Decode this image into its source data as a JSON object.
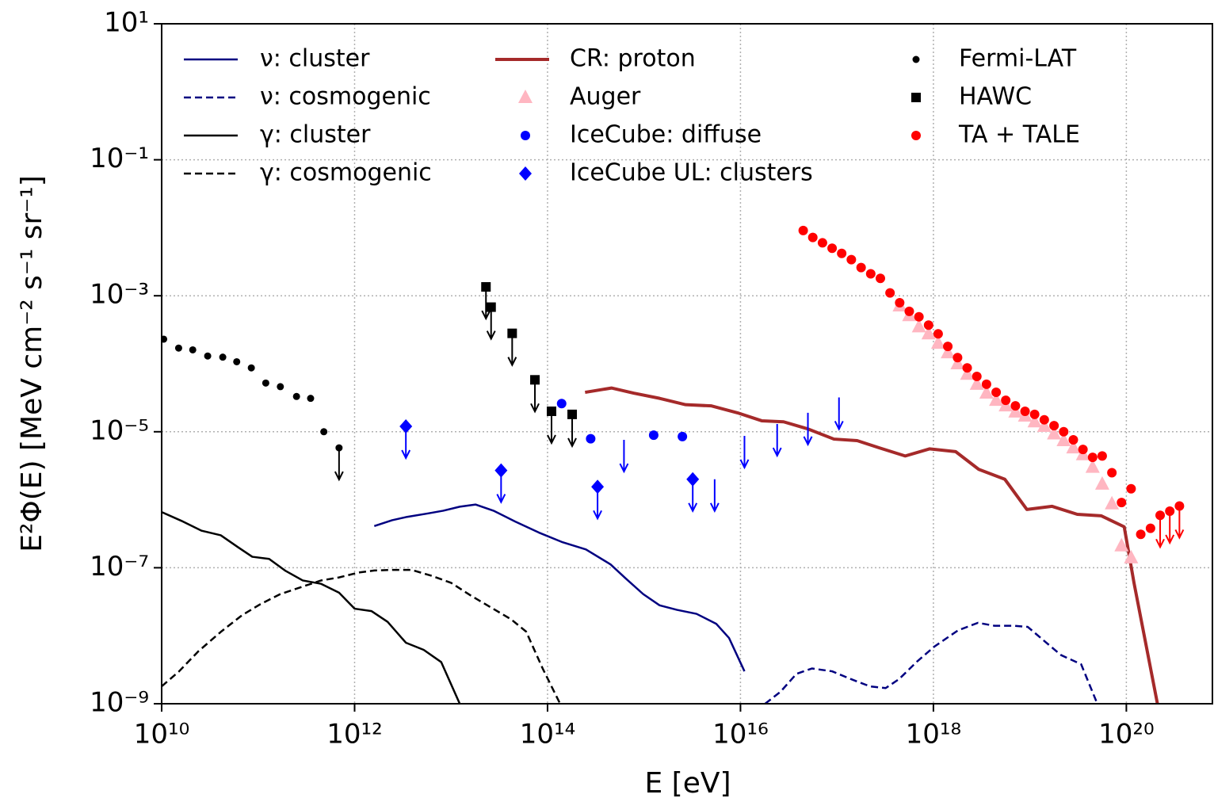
{
  "chart_data": {
    "type": "loglog",
    "x_label": "E [eV]",
    "y_label": "E²Φ(E) [MeV cm⁻² s⁻¹ sr⁻¹]",
    "xlim": [
      10000000000.0,
      7.8e+20
    ],
    "ylim": [
      1e-09,
      10
    ],
    "log_x": true,
    "log_y": true,
    "grid": true,
    "legend": "upper left",
    "xticks": [
      {
        "value": 10000000000.0,
        "label": "10¹⁰"
      },
      {
        "value": 1000000000000.0,
        "label": "10¹²"
      },
      {
        "value": 100000000000000.0,
        "label": "10¹⁴"
      },
      {
        "value": 1e+16,
        "label": "10¹⁶"
      },
      {
        "value": 1e+18,
        "label": "10¹⁸"
      },
      {
        "value": 1e+20,
        "label": "10²⁰"
      }
    ],
    "yticks": [
      {
        "value": 10,
        "label": "10¹"
      },
      {
        "value": 0.1,
        "label": "10⁻¹"
      },
      {
        "value": 0.001,
        "label": "10⁻³"
      },
      {
        "value": 1e-05,
        "label": "10⁻⁵"
      },
      {
        "value": 1e-07,
        "label": "10⁻⁷"
      },
      {
        "value": 1e-09,
        "label": "10⁻⁹"
      }
    ],
    "series": [
      {
        "name": "ν: cluster",
        "color": "#000080",
        "style": "solid",
        "x": [
          1600000000000.0,
          2450000000000.0,
          3500000000000.0,
          5800000000000.0,
          8300000000000.0,
          12300000000000.0,
          18000000000000.0,
          27500000000000.0,
          46000000000000.0,
          81000000000000.0,
          140000000000000.0,
          250000000000000.0,
          450000000000000.0,
          650000000000000.0,
          980000000000000.0,
          1450000000000000.0,
          2200000000000000.0,
          3500000000000000.0,
          5600000000000000.0,
          7600000000000000.0,
          1.1e+16
        ],
        "values": [
          4.1e-07,
          5e-07,
          5.6e-07,
          6.3e-07,
          6.9e-07,
          7.9e-07,
          8.5e-07,
          6.9e-07,
          4.8e-07,
          3.3e-07,
          2.4e-07,
          1.86e-07,
          1.12e-07,
          6.9e-08,
          4.1e-08,
          2.8e-08,
          2.4e-08,
          2.1e-08,
          1.5e-08,
          9.3e-09,
          3e-09
        ]
      },
      {
        "name": "ν: cosmogenic",
        "color": "#000080",
        "style": "dashed",
        "x": [
          1.8e+16,
          2.6e+16,
          3.8e+16,
          5.5e+16,
          8.9e+16,
          1.4e+17,
          2.2e+17,
          3.2e+17,
          4.4e+17,
          6.8e+17,
          1.02e+18,
          1.8e+18,
          2.9e+18,
          4.3e+18,
          6.8e+18,
          9.5e+18,
          1.45e+19,
          2.1e+19,
          3.4e+19,
          5e+19
        ],
        "values": [
          1e-09,
          1.5e-09,
          2.75e-09,
          3.3e-09,
          3e-09,
          2.3e-09,
          1.8e-09,
          1.7e-09,
          2.3e-09,
          4.2e-09,
          6.9e-09,
          1.2e-08,
          1.55e-08,
          1.4e-08,
          1.4e-08,
          1.35e-08,
          8.1e-09,
          5.2e-09,
          3.8e-09,
          1e-09
        ]
      },
      {
        "name": "γ: cluster",
        "color": "#000000",
        "style": "solid",
        "x": [
          10000000000.0,
          16000000000.0,
          26000000000.0,
          41000000000.0,
          62000000000.0,
          87000000000.0,
          130000000000.0,
          190000000000.0,
          290000000000.0,
          450000000000.0,
          690000000000.0,
          1000000000000.0,
          1500000000000.0,
          2200000000000.0,
          3400000000000.0,
          5200000000000.0,
          7900000000000.0,
          12300000000000.0
        ],
        "values": [
          6.6e-07,
          4.9e-07,
          3.5e-07,
          3e-07,
          2e-07,
          1.45e-07,
          1.35e-07,
          9.1e-08,
          6.5e-08,
          5.8e-08,
          4.3e-08,
          2.5e-08,
          2.3e-08,
          1.6e-08,
          7.9e-09,
          6.2e-09,
          4.1e-09,
          1e-09
        ]
      },
      {
        "name": "γ: cosmogenic",
        "color": "#000000",
        "style": "dashed",
        "x": [
          10000000000.0,
          15000000000.0,
          24000000000.0,
          42000000000.0,
          68000000000.0,
          105000000000.0,
          170000000000.0,
          280000000000.0,
          450000000000.0,
          690000000000.0,
          1100000000000.0,
          1600000000000.0,
          2450000000000.0,
          3900000000000.0,
          6300000000000.0,
          10000000000000.0,
          16000000000000.0,
          26000000000000.0,
          42000000000000.0,
          60000000000000.0,
          89000000000000.0,
          135000000000000.0
        ],
        "values": [
          1.8e-09,
          2.95e-09,
          5.9e-09,
          1.17e-08,
          2e-08,
          2.9e-08,
          4.1e-08,
          5.2e-08,
          6.5e-08,
          7.2e-08,
          8.5e-08,
          9.1e-08,
          9.3e-08,
          9.3e-08,
          7.6e-08,
          6e-08,
          3.9e-08,
          2.6e-08,
          1.74e-08,
          1.15e-08,
          3.3e-09,
          1e-09
        ]
      },
      {
        "name": "CR: proton",
        "color": "#a52a2a",
        "style": "thick",
        "x": [
          245000000000000.0,
          460000000000000.0,
          780000000000000.0,
          1450000000000000.0,
          2700000000000000.0,
          5000000000000000.0,
          9300000000000000.0,
          1.66e+16,
          2.8e+16,
          5e+16,
          9.3e+16,
          1.62e+17,
          2.75e+17,
          5.1e+17,
          9.1e+17,
          1.7e+18,
          2.95e+18,
          5.5e+18,
          9.3e+18,
          1.7e+19,
          3.1e+19,
          5.5e+19,
          9.5e+19,
          1.2e+20,
          2.1e+20
        ],
        "values": [
          3.8e-05,
          4.4e-05,
          3.7e-05,
          3.1e-05,
          2.5e-05,
          2.4e-05,
          1.9e-05,
          1.45e-05,
          1.4e-05,
          1.1e-05,
          7.8e-06,
          7.4e-06,
          5.8e-06,
          4.4e-06,
          5.6e-06,
          5.1e-06,
          2.8e-06,
          2e-06,
          7.2e-07,
          8e-07,
          6.1e-07,
          5.8e-07,
          4e-07,
          6e-08,
          1e-09
        ]
      },
      {
        "name": "Auger",
        "color": "#ffb6c1",
        "style": "triangle",
        "x": [
          4.47e+17,
          5.62e+17,
          7.08e+17,
          8.91e+17,
          1.12e+18,
          1.41e+18,
          1.78e+18,
          2.24e+18,
          2.82e+18,
          3.55e+18,
          4.47e+18,
          5.62e+18,
          7.08e+18,
          8.91e+18,
          1.12e+19,
          1.41e+19,
          1.78e+19,
          2.24e+19,
          2.82e+19,
          3.55e+19,
          4.47e+19,
          5.62e+19,
          7.08e+19,
          8.91e+19,
          1.12e+20
        ],
        "values": [
          0.00071,
          0.00051,
          0.00035,
          0.000275,
          0.0002,
          0.000145,
          0.0001,
          7e-05,
          5e-05,
          3.7e-05,
          2.9e-05,
          2.4e-05,
          1.95e-05,
          1.7e-05,
          1.4e-05,
          1.2e-05,
          9.3e-06,
          7.4e-06,
          5.8e-06,
          4.6e-06,
          3e-06,
          1.7e-06,
          8.7e-07,
          2.1e-07,
          1.4e-07
        ]
      },
      {
        "name": "IceCube: diffuse",
        "color": "#0000ff",
        "style": "circle",
        "x": [
          140000000000000.0,
          280000000000000.0,
          620000000000000.0,
          1260000000000000.0,
          2500000000000000.0,
          5400000000000000.0,
          1.1e+16,
          2.4e+16,
          5e+16,
          1.05e+17
        ],
        "values": [
          2.6e-05,
          7.9e-06,
          7.6e-06,
          8.9e-06,
          8.5e-06,
          2e-06,
          8.7e-06,
          1.3e-05,
          1.9e-05,
          3.2e-05
        ],
        "upper_limits": [
          false,
          false,
          true,
          false,
          false,
          true,
          true,
          true,
          true,
          true
        ]
      },
      {
        "name": "IceCube UL: clusters",
        "color": "#0000ff",
        "style": "diamond",
        "x": [
          3400000000000.0,
          33000000000000.0,
          330000000000000.0,
          3200000000000000.0
        ],
        "values": [
          1.2e-05,
          2.7e-06,
          1.55e-06,
          2e-06
        ],
        "upper_limits": [
          true,
          true,
          true,
          true
        ]
      },
      {
        "name": "Fermi-LAT",
        "color": "#000000",
        "style": "circle-small",
        "x": [
          10500000000.0,
          15000000000.0,
          21000000000.0,
          30000000000.0,
          43000000000.0,
          60000000000.0,
          85000000000.0,
          120000000000.0,
          170000000000.0,
          250000000000.0,
          350000000000.0,
          480000000000.0,
          690000000000.0
        ],
        "values": [
          0.00023,
          0.00017,
          0.00016,
          0.00013,
          0.000125,
          0.000107,
          8.7e-05,
          5.2e-05,
          4.6e-05,
          3.3e-05,
          3.1e-05,
          1e-05,
          5.8e-06
        ],
        "upper_limits": [
          false,
          false,
          false,
          false,
          false,
          false,
          false,
          false,
          false,
          false,
          false,
          false,
          true
        ]
      },
      {
        "name": "HAWC",
        "color": "#000000",
        "style": "square",
        "x": [
          23000000000000.0,
          26000000000000.0,
          43000000000000.0,
          74000000000000.0,
          110000000000000.0,
          180000000000000.0
        ],
        "values": [
          0.00135,
          0.00068,
          0.00028,
          5.8e-05,
          2e-05,
          1.8e-05
        ],
        "upper_limits": [
          true,
          true,
          true,
          true,
          true,
          true
        ]
      },
      {
        "name": "TA + TALE",
        "color": "#ff0000",
        "style": "circle",
        "x": [
          4.47e+16,
          5.62e+16,
          7.08e+16,
          8.91e+16,
          1.12e+17,
          1.41e+17,
          1.78e+17,
          2.24e+17,
          2.82e+17,
          3.55e+17,
          4.47e+17,
          5.62e+17,
          7.08e+17,
          8.91e+17,
          1.12e+18,
          1.41e+18,
          1.78e+18,
          2.24e+18,
          2.82e+18,
          3.55e+18,
          4.47e+18,
          5.62e+18,
          7.08e+18,
          8.91e+18,
          1.12e+19,
          1.41e+19,
          1.78e+19,
          2.24e+19,
          2.82e+19,
          3.55e+19,
          4.47e+19,
          5.62e+19,
          7.08e+19,
          8.91e+19,
          1.12e+20,
          1.41e+20,
          1.78e+20,
          2.24e+20,
          2.82e+20,
          3.55e+20
        ],
        "values": [
          0.0091,
          0.0072,
          0.006,
          0.005,
          0.0042,
          0.0034,
          0.0026,
          0.0021,
          0.0018,
          0.0011,
          0.00079,
          0.00059,
          0.00049,
          0.00037,
          0.000275,
          0.00018,
          0.000123,
          8.7e-05,
          6.5e-05,
          5e-05,
          3.8e-05,
          2.9e-05,
          2.4e-05,
          2e-05,
          1.8e-05,
          1.5e-05,
          1.23e-05,
          1e-05,
          7.6e-06,
          5.5e-06,
          4.2e-06,
          4.4e-06,
          2.5e-06,
          9.1e-07,
          1.45e-06,
          3.1e-07,
          3.8e-07,
          5.9e-07,
          6.8e-07,
          8.1e-07
        ],
        "upper_limits": [
          false,
          false,
          false,
          false,
          false,
          false,
          false,
          false,
          false,
          false,
          false,
          false,
          false,
          false,
          false,
          false,
          false,
          false,
          false,
          false,
          false,
          false,
          false,
          false,
          false,
          false,
          false,
          false,
          false,
          false,
          false,
          false,
          false,
          false,
          false,
          false,
          false,
          true,
          true,
          true
        ]
      }
    ]
  }
}
